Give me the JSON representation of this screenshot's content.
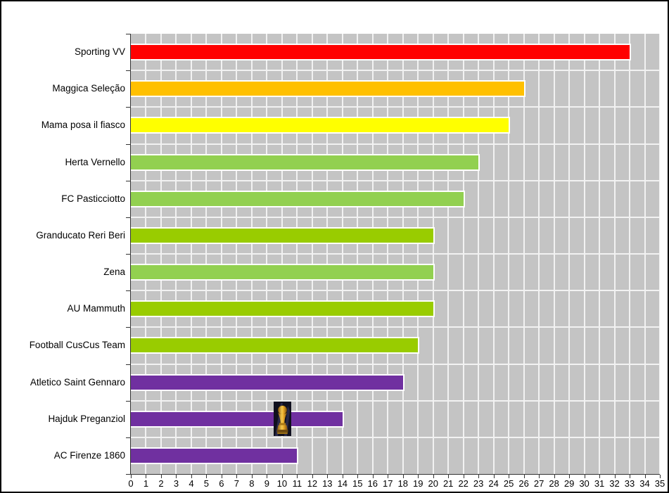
{
  "chart_data": {
    "type": "bar",
    "orientation": "horizontal",
    "title": "",
    "xlabel": "",
    "ylabel": "",
    "categories": [
      "Sporting VV",
      "Maggica Seleção",
      "Mama posa il fiasco",
      "Herta Vernello",
      "FC Pasticciotto",
      "Granducato Reri Beri",
      "Zena",
      "AU Mammuth",
      "Football CusCus Team",
      "Atletico Saint Gennaro",
      "Hajduk Preganziol",
      "AC Firenze 1860"
    ],
    "values": [
      33,
      26,
      25,
      23,
      22,
      20,
      20,
      20,
      19,
      18,
      14,
      11
    ],
    "bar_colors": [
      "#FF0000",
      "#FFC000",
      "#FFFF00",
      "#92D050",
      "#92D050",
      "#99CC00",
      "#92D050",
      "#99CC00",
      "#99CC00",
      "#7030A0",
      "#7030A0",
      "#7030A0"
    ],
    "xlim": [
      0,
      35
    ],
    "x_tick_step": 1,
    "grid": true,
    "legend": false,
    "plot_background": "#C4C4C4",
    "gridline_color": "#F2F2F2",
    "axis_color": "#333333",
    "annotation": {
      "name": "world-cup-trophy",
      "category": "Hajduk Preganziol",
      "x_center": 10.05,
      "description": "FIFA World Cup trophy picture overlapping the Hajduk Preganziol bar"
    }
  }
}
